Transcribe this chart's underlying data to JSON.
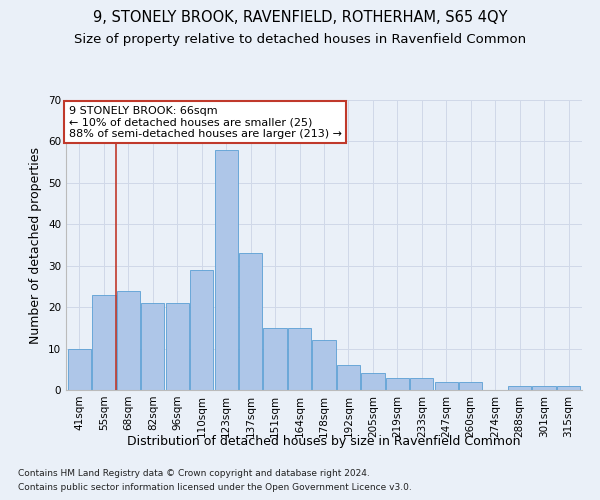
{
  "title": "9, STONELY BROOK, RAVENFIELD, ROTHERHAM, S65 4QY",
  "subtitle": "Size of property relative to detached houses in Ravenfield Common",
  "xlabel": "Distribution of detached houses by size in Ravenfield Common",
  "ylabel": "Number of detached properties",
  "footnote1": "Contains HM Land Registry data © Crown copyright and database right 2024.",
  "footnote2": "Contains public sector information licensed under the Open Government Licence v3.0.",
  "categories": [
    "41sqm",
    "55sqm",
    "68sqm",
    "82sqm",
    "96sqm",
    "110sqm",
    "123sqm",
    "137sqm",
    "151sqm",
    "164sqm",
    "178sqm",
    "192sqm",
    "205sqm",
    "219sqm",
    "233sqm",
    "247sqm",
    "260sqm",
    "274sqm",
    "288sqm",
    "301sqm",
    "315sqm"
  ],
  "values": [
    10,
    23,
    24,
    21,
    21,
    29,
    58,
    33,
    15,
    15,
    12,
    6,
    4,
    3,
    3,
    2,
    2,
    0,
    1,
    1,
    1
  ],
  "bar_color": "#aec6e8",
  "bar_edge_color": "#5a9fd4",
  "highlight_color": "#c0392b",
  "annotation_line1": "9 STONELY BROOK: 66sqm",
  "annotation_line2": "← 10% of detached houses are smaller (25)",
  "annotation_line3": "88% of semi-detached houses are larger (213) →",
  "annotation_box_color": "#ffffff",
  "annotation_box_edge": "#c0392b",
  "red_line_x": 1.5,
  "ylim": [
    0,
    70
  ],
  "yticks": [
    0,
    10,
    20,
    30,
    40,
    50,
    60,
    70
  ],
  "grid_color": "#d0d8e8",
  "background_color": "#eaf0f8",
  "title_fontsize": 10.5,
  "subtitle_fontsize": 9.5,
  "ylabel_fontsize": 9,
  "xlabel_fontsize": 9,
  "tick_fontsize": 7.5,
  "footnote_fontsize": 6.5,
  "ann_fontsize": 8
}
